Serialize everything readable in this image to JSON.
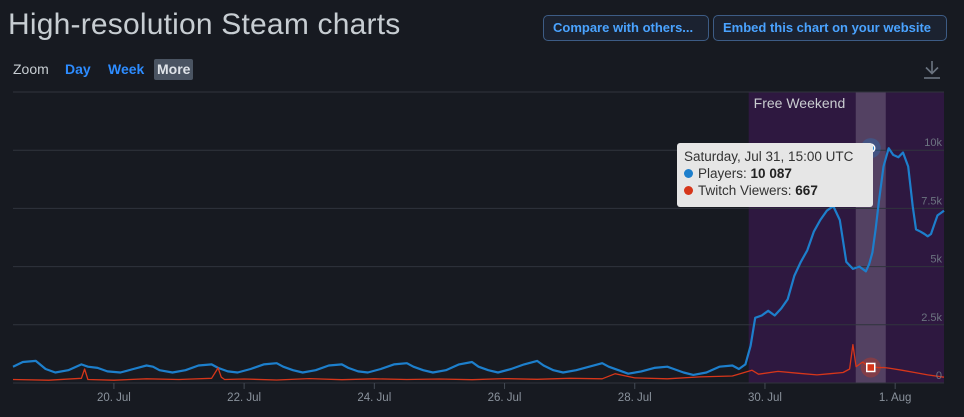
{
  "page": {
    "title": "High-resolution Steam charts",
    "compare_button": "Compare with others...",
    "embed_button": "Embed this chart on your website"
  },
  "zoom": {
    "label": "Zoom",
    "options": [
      "Day",
      "Week",
      "More"
    ],
    "active": "More"
  },
  "icons": {
    "download": "download-icon"
  },
  "colors": {
    "background": "#171a21",
    "players": "#1d7fcc",
    "twitch": "#d6361a",
    "band": "#3a1c4a",
    "accent": "#4aa3ff"
  },
  "tooltip": {
    "date": "Saturday, Jul 31, 15:00 UTC",
    "players_label": "Players:",
    "players_value": "10 087",
    "twitch_label": "Twitch Viewers:",
    "twitch_value": "667"
  },
  "chart_data": {
    "type": "line",
    "title": "High-resolution Steam charts",
    "x_ticks": [
      "20. Jul",
      "22. Jul",
      "24. Jul",
      "26. Jul",
      "28. Jul",
      "30. Jul",
      "1. Aug"
    ],
    "y_ticks": [
      "0",
      "2.5k",
      "5k",
      "7.5k",
      "10k"
    ],
    "ylim": [
      0,
      12500
    ],
    "xlim": [
      "Jul 18 11:00",
      "Aug 1 18:00"
    ],
    "grid": true,
    "plot_band": {
      "label": "Free Weekend",
      "from": "Jul 29 18:00",
      "to": "Aug 1 18:00"
    },
    "highlighted_point": {
      "x": "Jul 31 15:00",
      "Players": 10087,
      "Twitch Viewers": 667
    },
    "x_unit": "days since Jul 18 00:00",
    "series": [
      {
        "name": "Players",
        "x": [
          0.45,
          0.6,
          0.8,
          0.95,
          1.1,
          1.3,
          1.5,
          1.6,
          1.75,
          1.9,
          2.1,
          2.3,
          2.5,
          2.6,
          2.7,
          2.9,
          3.1,
          3.3,
          3.5,
          3.6,
          3.75,
          3.9,
          4.1,
          4.3,
          4.5,
          4.6,
          4.75,
          4.9,
          5.1,
          5.3,
          5.5,
          5.6,
          5.75,
          5.9,
          6.1,
          6.3,
          6.5,
          6.6,
          6.75,
          6.9,
          7.1,
          7.3,
          7.5,
          7.6,
          7.75,
          7.9,
          8.1,
          8.3,
          8.5,
          8.6,
          8.75,
          8.9,
          9.1,
          9.3,
          9.5,
          9.6,
          9.75,
          9.9,
          10.1,
          10.3,
          10.5,
          10.6,
          10.75,
          10.9,
          11.1,
          11.3,
          11.5,
          11.6,
          11.7,
          11.78,
          11.85,
          11.95,
          12.05,
          12.15,
          12.25,
          12.35,
          12.45,
          12.55,
          12.65,
          12.75,
          12.85,
          12.95,
          13.05,
          13.15,
          13.25,
          13.35,
          13.45,
          13.55,
          13.6,
          13.65,
          13.7,
          13.75,
          13.82,
          13.9,
          13.97,
          14.05,
          14.12,
          14.2,
          14.27,
          14.32,
          14.39,
          14.45,
          14.5,
          14.55,
          14.6,
          14.65,
          14.7,
          14.75
        ],
        "y": [
          700,
          900,
          950,
          600,
          450,
          550,
          800,
          700,
          650,
          500,
          450,
          600,
          750,
          700,
          550,
          450,
          550,
          750,
          800,
          650,
          500,
          450,
          600,
          800,
          850,
          700,
          550,
          450,
          550,
          750,
          800,
          650,
          500,
          450,
          600,
          800,
          850,
          700,
          550,
          450,
          550,
          800,
          900,
          700,
          550,
          450,
          600,
          800,
          950,
          750,
          550,
          450,
          550,
          700,
          850,
          700,
          550,
          400,
          500,
          650,
          700,
          600,
          450,
          350,
          450,
          700,
          750,
          600,
          800,
          1600,
          2800,
          2900,
          3100,
          2900,
          3200,
          3600,
          4600,
          5200,
          5700,
          6500,
          7000,
          7400,
          7600,
          7000,
          5200,
          4900,
          5000,
          4800,
          5100,
          5600,
          6600,
          7800,
          9300,
          10087,
          9800,
          9700,
          9900,
          9300,
          7600,
          6600,
          6500,
          6400,
          6300,
          6400,
          6800,
          7200,
          7300,
          7400
        ]
      },
      {
        "name": "Twitch Viewers",
        "x": [
          0.45,
          1.0,
          1.5,
          1.55,
          1.6,
          2.0,
          2.5,
          3.0,
          3.5,
          3.6,
          3.65,
          3.7,
          4.0,
          4.5,
          5.0,
          5.5,
          6.0,
          6.5,
          7.0,
          7.5,
          8.0,
          8.5,
          9.0,
          9.5,
          9.7,
          10.0,
          10.5,
          11.0,
          11.5,
          11.8,
          11.9,
          12.2,
          12.5,
          12.8,
          13.0,
          13.2,
          13.3,
          13.35,
          13.4,
          13.5,
          13.6,
          13.75,
          13.82,
          13.9,
          14.1,
          14.3,
          14.5,
          14.75
        ],
        "y": [
          150,
          120,
          200,
          600,
          150,
          120,
          180,
          150,
          200,
          650,
          250,
          150,
          170,
          130,
          190,
          140,
          180,
          150,
          170,
          140,
          190,
          160,
          200,
          180,
          400,
          220,
          180,
          260,
          300,
          550,
          380,
          500,
          420,
          350,
          400,
          450,
          600,
          1650,
          700,
          900,
          700,
          660,
          667,
          640,
          550,
          450,
          350,
          250
        ]
      }
    ]
  }
}
